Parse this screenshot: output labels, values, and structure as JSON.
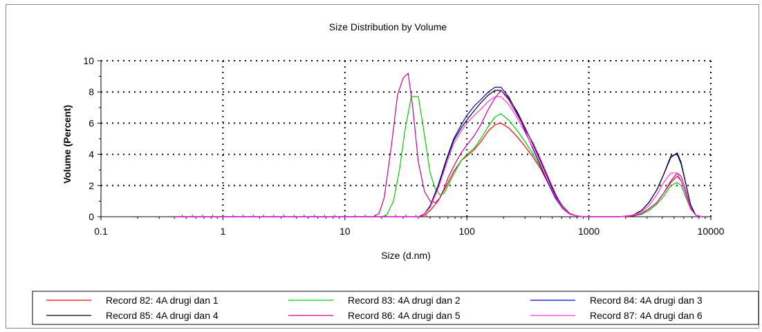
{
  "chart_data": {
    "type": "line",
    "title": "Size Distribution by Volume",
    "xlabel": "Size (d.nm)",
    "ylabel": "Volume (Percent)",
    "x_scale": "log",
    "xlim": [
      0.1,
      10000
    ],
    "ylim": [
      0,
      10
    ],
    "x_ticks": [
      0.1,
      1,
      10,
      100,
      1000,
      10000
    ],
    "x_tick_labels": [
      "0.1",
      "1",
      "10",
      "100",
      "1000",
      "10000"
    ],
    "y_ticks": [
      0,
      2,
      4,
      6,
      8,
      10
    ],
    "y_tick_labels": [
      "0",
      "2",
      "4",
      "6",
      "8",
      "10"
    ],
    "grid": true,
    "legend_position": "bottom",
    "series": [
      {
        "name": "Record 82: 4A drugi dan 1",
        "color": "#ff0000",
        "x": [
          0.4,
          40,
          45,
          50,
          58,
          68,
          78,
          90,
          100,
          115,
          130,
          150,
          170,
          190,
          220,
          260,
          300,
          350,
          400,
          460,
          530,
          610,
          700,
          800,
          920,
          1000,
          1800,
          2300,
          2700,
          3100,
          3600,
          4100,
          4700,
          5300,
          5700,
          6200,
          6800,
          7500,
          8500
        ],
        "y": [
          0,
          0,
          0.1,
          0.4,
          1.0,
          2.0,
          2.9,
          3.6,
          3.9,
          4.3,
          4.8,
          5.5,
          5.9,
          6.0,
          5.7,
          5.1,
          4.5,
          3.8,
          3.1,
          2.2,
          1.3,
          0.6,
          0.2,
          0.05,
          0,
          0,
          0,
          0.05,
          0.2,
          0.5,
          0.9,
          1.5,
          2.2,
          2.6,
          2.3,
          1.5,
          0.6,
          0.1,
          0
        ]
      },
      {
        "name": "Record 83: 4A drugi dan 2",
        "color": "#00cc00",
        "x": [
          0.4,
          20,
          22,
          25,
          28,
          31,
          35,
          40,
          45,
          50,
          55,
          60,
          65,
          70,
          80,
          90,
          100,
          115,
          130,
          150,
          170,
          190,
          220,
          260,
          300,
          350,
          400,
          460,
          530,
          610,
          700,
          800,
          920,
          1000,
          1800,
          2300,
          2700,
          3100,
          3600,
          4100,
          4700,
          5300,
          5700,
          6200,
          6800,
          7500,
          8500
        ],
        "y": [
          0,
          0,
          0.1,
          1.0,
          3.0,
          5.5,
          7.7,
          7.7,
          5.2,
          2.8,
          1.8,
          1.4,
          1.5,
          2.0,
          2.9,
          3.6,
          4.0,
          4.4,
          5.0,
          5.8,
          6.4,
          6.6,
          6.2,
          5.5,
          4.8,
          4.0,
          3.2,
          2.3,
          1.4,
          0.7,
          0.2,
          0.05,
          0,
          0,
          0,
          0.05,
          0.15,
          0.4,
          0.8,
          1.3,
          2.0,
          2.2,
          2.0,
          1.3,
          0.5,
          0.1,
          0
        ]
      },
      {
        "name": "Record 84: 4A drugi dan 3",
        "color": "#0000cc",
        "x": [
          0.4,
          40,
          45,
          50,
          58,
          68,
          78,
          90,
          100,
          115,
          130,
          150,
          170,
          190,
          220,
          260,
          300,
          350,
          400,
          460,
          530,
          610,
          700,
          800,
          920,
          1000,
          1800,
          2300,
          2700,
          3100,
          3600,
          4100,
          4700,
          5300,
          5700,
          6200,
          6800,
          7500,
          8500
        ],
        "y": [
          0,
          0,
          0.2,
          0.7,
          2.0,
          3.7,
          5.0,
          5.9,
          6.5,
          7.1,
          7.5,
          8.0,
          8.3,
          8.3,
          7.7,
          6.6,
          5.5,
          4.3,
          3.3,
          2.2,
          1.2,
          0.5,
          0.15,
          0.05,
          0,
          0,
          0,
          0.1,
          0.4,
          0.9,
          1.7,
          2.7,
          3.8,
          4.1,
          3.5,
          2.2,
          0.8,
          0.1,
          0
        ]
      },
      {
        "name": "Record 85: 4A drugi dan 4",
        "color": "#000000",
        "x": [
          0.4,
          40,
          45,
          50,
          58,
          68,
          78,
          90,
          100,
          115,
          130,
          150,
          170,
          190,
          220,
          260,
          300,
          350,
          400,
          460,
          530,
          610,
          700,
          800,
          920,
          1000,
          1800,
          2300,
          2700,
          3100,
          3600,
          4100,
          4700,
          5300,
          5700,
          6200,
          6800,
          7500,
          8500
        ],
        "y": [
          0,
          0,
          0.2,
          0.7,
          1.9,
          3.6,
          4.9,
          5.7,
          6.2,
          6.8,
          7.3,
          7.8,
          8.1,
          8.1,
          7.6,
          6.7,
          5.7,
          4.6,
          3.6,
          2.5,
          1.4,
          0.6,
          0.2,
          0.05,
          0,
          0,
          0,
          0.1,
          0.4,
          0.9,
          1.7,
          2.7,
          3.9,
          4.0,
          3.4,
          2.2,
          0.8,
          0.1,
          0
        ]
      },
      {
        "name": "Record 86: 4A drugi dan 5",
        "color": "#cc0088",
        "x": [
          0.4,
          17,
          19,
          21,
          24,
          27,
          30,
          33,
          36,
          40,
          45,
          50,
          55,
          60,
          65,
          70,
          80,
          90,
          100,
          115,
          130,
          150,
          170,
          190,
          220,
          260,
          300,
          350,
          400,
          460,
          530,
          610,
          700,
          800,
          920,
          1000,
          1800,
          2300,
          2700,
          3100,
          3600,
          4100,
          4700,
          5300,
          5700,
          6200,
          6800,
          7500,
          8500
        ],
        "y": [
          0,
          0,
          0.2,
          1.2,
          4.5,
          7.8,
          8.9,
          9.2,
          7.0,
          3.5,
          1.6,
          1.0,
          0.9,
          1.2,
          1.8,
          2.5,
          3.4,
          4.1,
          4.6,
          5.2,
          5.9,
          6.9,
          7.6,
          8.1,
          7.5,
          6.5,
          5.6,
          4.7,
          3.7,
          2.6,
          1.5,
          0.6,
          0.2,
          0.05,
          0,
          0,
          0,
          0.05,
          0.2,
          0.5,
          0.9,
          1.5,
          2.3,
          2.8,
          2.6,
          1.7,
          0.6,
          0.1,
          0
        ]
      },
      {
        "name": "Record 87: 4A drugi dan 6",
        "color": "#ff33ff",
        "x": [
          0.4,
          40,
          45,
          50,
          58,
          68,
          78,
          90,
          100,
          115,
          130,
          150,
          170,
          190,
          220,
          260,
          300,
          350,
          400,
          460,
          530,
          610,
          700,
          800,
          920,
          1000,
          1800,
          2300,
          2700,
          3100,
          3600,
          4100,
          4700,
          5300,
          5700,
          6200,
          6800,
          7500,
          8500
        ],
        "y": [
          0,
          0,
          0.2,
          0.6,
          1.8,
          3.4,
          4.7,
          5.5,
          6.0,
          6.5,
          6.9,
          7.4,
          7.7,
          7.7,
          7.2,
          6.3,
          5.4,
          4.4,
          3.4,
          2.3,
          1.3,
          0.5,
          0.15,
          0.05,
          0,
          0,
          0,
          0.1,
          0.3,
          0.7,
          1.4,
          2.2,
          2.8,
          2.8,
          2.3,
          1.5,
          0.5,
          0.1,
          0
        ]
      }
    ]
  }
}
